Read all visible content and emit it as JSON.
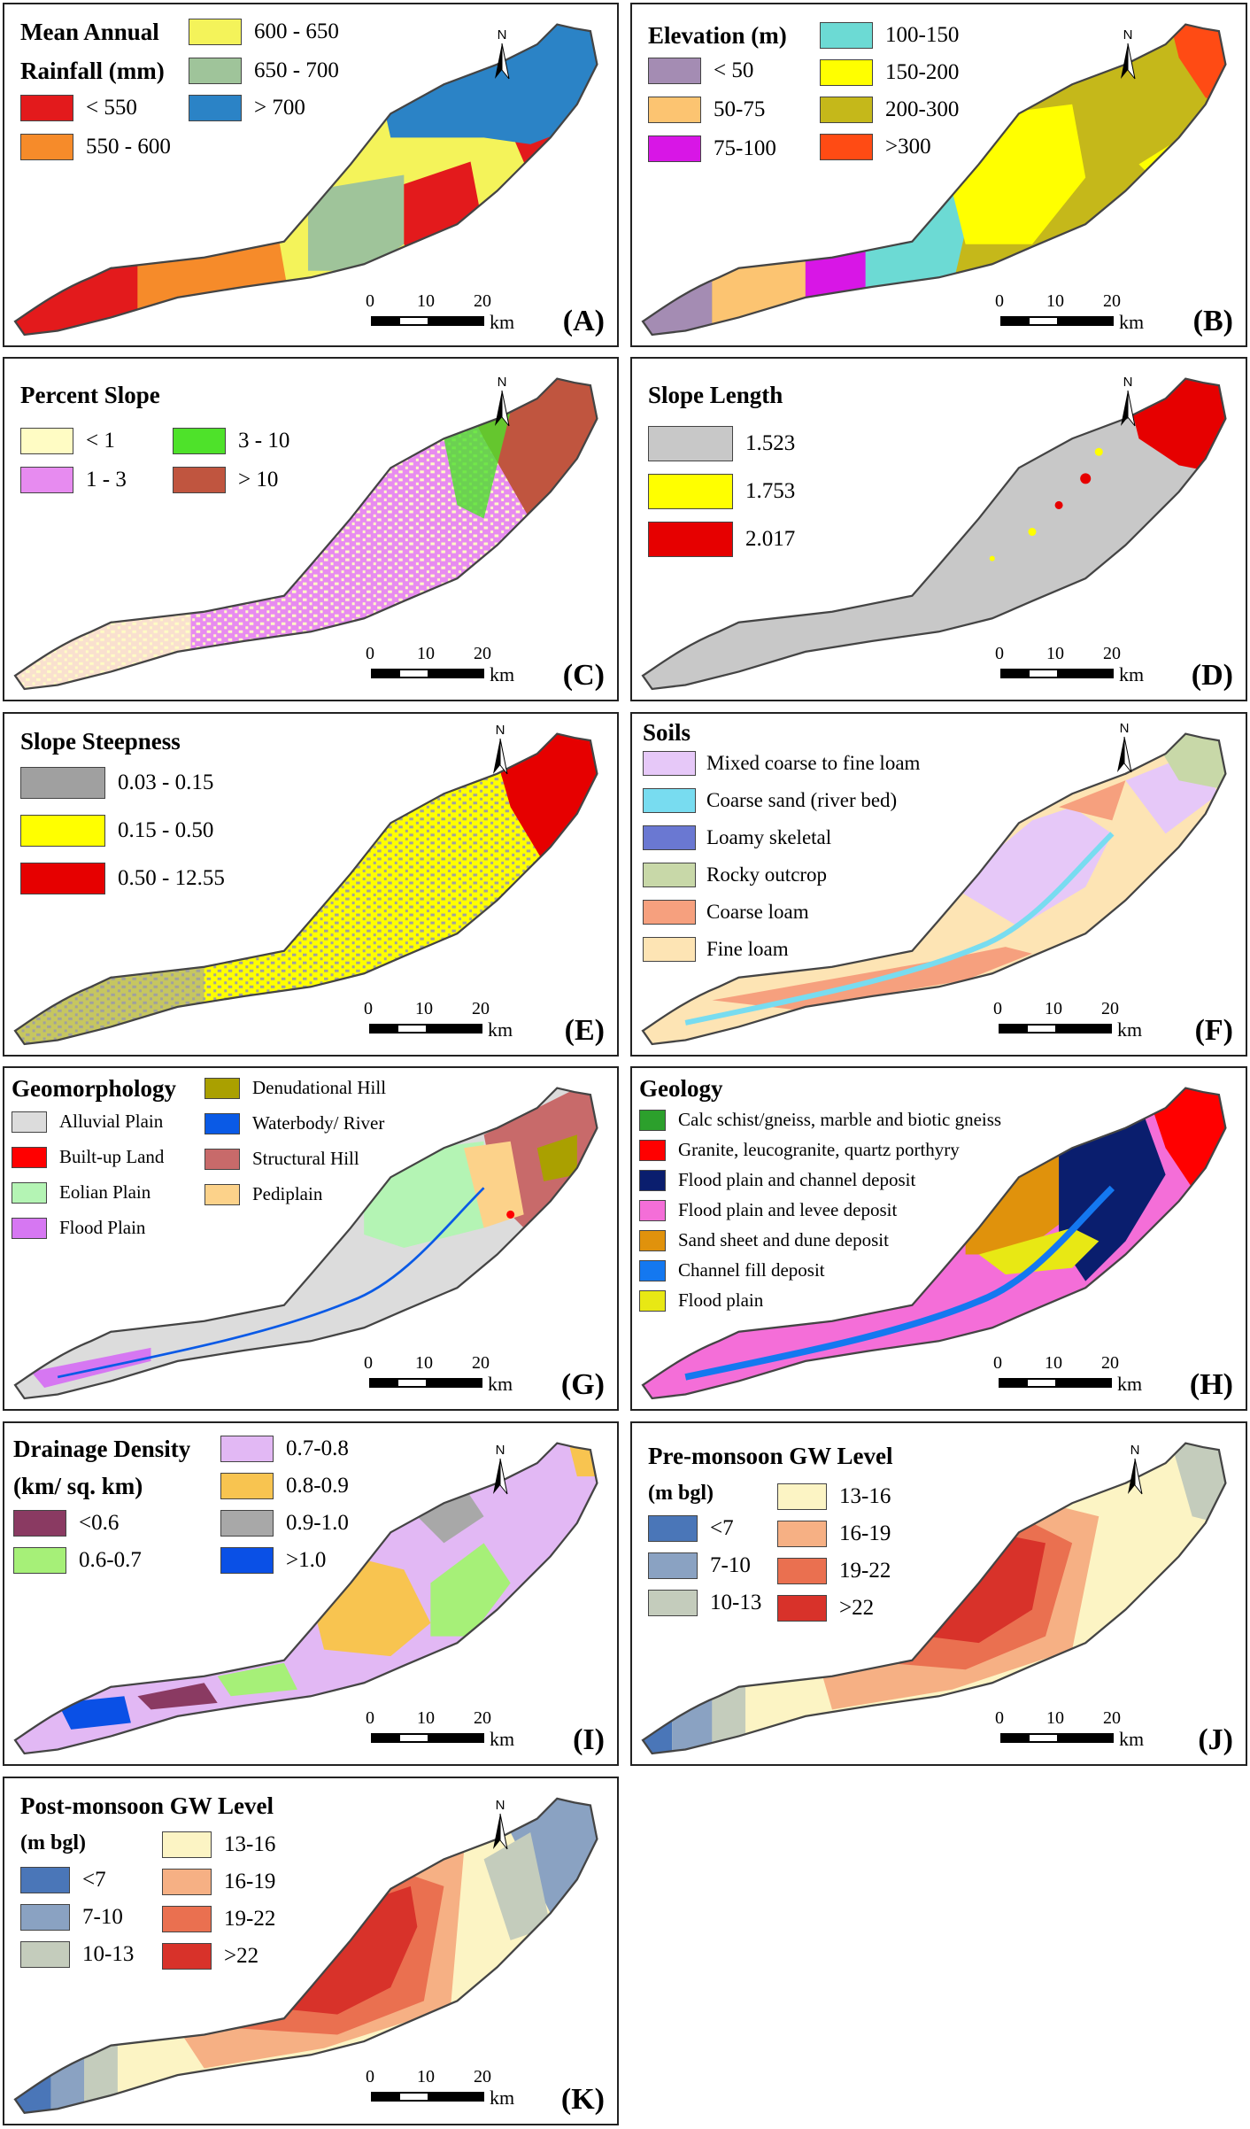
{
  "panels": [
    {
      "id": "A",
      "label": "(A)",
      "title_lines": [
        "Mean Annual",
        "Rainfall (mm)"
      ],
      "legend": [
        {
          "label": "< 550",
          "color": "#e31a1c"
        },
        {
          "label": "550 - 600",
          "color": "#f68b2a"
        },
        {
          "label": "600 - 650",
          "color": "#f4f35a"
        },
        {
          "label": "650 - 700",
          "color": "#9fc49a"
        },
        {
          "label": "> 700",
          "color": "#2b83c6"
        }
      ]
    },
    {
      "id": "B",
      "label": "(B)",
      "title_lines": [
        "Elevation (m)"
      ],
      "legend": [
        {
          "label": "< 50",
          "color": "#a48cb3"
        },
        {
          "label": "50-75",
          "color": "#fcc471"
        },
        {
          "label": "75-100",
          "color": "#d816e6"
        },
        {
          "label": "100-150",
          "color": "#6cdad4"
        },
        {
          "label": "150-200",
          "color": "#ffff00"
        },
        {
          "label": "200-300",
          "color": "#c5b81a"
        },
        {
          "label": ">300",
          "color": "#ff4b14"
        }
      ]
    },
    {
      "id": "C",
      "label": "(C)",
      "title_lines": [
        "Percent Slope"
      ],
      "legend": [
        {
          "label": "< 1",
          "color": "#fffcc4"
        },
        {
          "label": "1 - 3",
          "color": "#e78bf0"
        },
        {
          "label": "3 - 10",
          "color": "#4ee22a"
        },
        {
          "label": "> 10",
          "color": "#c0553f"
        }
      ]
    },
    {
      "id": "D",
      "label": "(D)",
      "title_lines": [
        "Slope Length"
      ],
      "legend": [
        {
          "label": "1.523",
          "color": "#c8c8c8"
        },
        {
          "label": "1.753",
          "color": "#ffff00"
        },
        {
          "label": "2.017",
          "color": "#e60000"
        }
      ]
    },
    {
      "id": "E",
      "label": "(E)",
      "title_lines": [
        "Slope Steepness"
      ],
      "legend": [
        {
          "label": "0.03 - 0.15",
          "color": "#a0a0a0"
        },
        {
          "label": "0.15 - 0.50",
          "color": "#ffff00"
        },
        {
          "label": "0.50 - 12.55",
          "color": "#e60000"
        }
      ]
    },
    {
      "id": "F",
      "label": "(F)",
      "title_lines": [
        "Soils"
      ],
      "legend": [
        {
          "label": "Mixed coarse to fine loam",
          "color": "#e6c8f8"
        },
        {
          "label": "Coarse sand (river bed)",
          "color": "#78dcf0"
        },
        {
          "label": "Loamy skeletal",
          "color": "#6a78d2"
        },
        {
          "label": "Rocky outcrop",
          "color": "#c8d8a8"
        },
        {
          "label": "Coarse loam",
          "color": "#f6a07e"
        },
        {
          "label": "Fine loam",
          "color": "#fde4b4"
        }
      ]
    },
    {
      "id": "G",
      "label": "(G)",
      "title_lines": [
        "Geomorphology"
      ],
      "legend": [
        {
          "label": "Alluvial Plain",
          "color": "#dcdcdc"
        },
        {
          "label": "Built-up Land",
          "color": "#ff0000"
        },
        {
          "label": "Eolian Plain",
          "color": "#b4f4b4"
        },
        {
          "label": "Flood Plain",
          "color": "#d677f2"
        },
        {
          "label": "Denudational Hill",
          "color": "#aaa000"
        },
        {
          "label": "Waterbody/ River",
          "color": "#0a5ae6"
        },
        {
          "label": "Structural Hill",
          "color": "#c86a6a"
        },
        {
          "label": "Pediplain",
          "color": "#fcd28a"
        }
      ]
    },
    {
      "id": "H",
      "label": "(H)",
      "title_lines": [
        "Geology"
      ],
      "legend": [
        {
          "label": "Calc schist/gneiss, marble and biotic gneiss",
          "color": "#2ca02c"
        },
        {
          "label": "Granite, leucogranite, quartz porthyry",
          "color": "#ff0000"
        },
        {
          "label": "Flood plain and channel deposit",
          "color": "#0a1e6e"
        },
        {
          "label": "Flood plain and levee deposit",
          "color": "#f46ed8"
        },
        {
          "label": "Sand sheet and dune deposit",
          "color": "#e0920c"
        },
        {
          "label": "Channel fill deposit",
          "color": "#1478f0"
        },
        {
          "label": "Flood plain",
          "color": "#e8e814"
        }
      ]
    },
    {
      "id": "I",
      "label": "(I)",
      "title_lines": [
        "Drainage Density",
        "(km/ sq. km)"
      ],
      "legend": [
        {
          "label": "<0.6",
          "color": "#8a3a62"
        },
        {
          "label": "0.6-0.7",
          "color": "#a6f078"
        },
        {
          "label": "0.7-0.8",
          "color": "#e2b8f4"
        },
        {
          "label": "0.8-0.9",
          "color": "#f8c450"
        },
        {
          "label": "0.9-1.0",
          "color": "#a8a8a8"
        },
        {
          "label": ">1.0",
          "color": "#0a50e6"
        }
      ]
    },
    {
      "id": "J",
      "label": "(J)",
      "title_lines": [
        "Pre-monsoon GW Level",
        "(m bgl)"
      ],
      "legend": [
        {
          "label": "<7",
          "color": "#4a76b8"
        },
        {
          "label": "7-10",
          "color": "#8aa2c2"
        },
        {
          "label": "10-13",
          "color": "#c4ccbc"
        },
        {
          "label": "13-16",
          "color": "#fcf4c4"
        },
        {
          "label": "16-19",
          "color": "#f6b084"
        },
        {
          "label": "19-22",
          "color": "#ea7050"
        },
        {
          "label": ">22",
          "color": "#d8322a"
        }
      ]
    },
    {
      "id": "K",
      "label": "(K)",
      "title_lines": [
        "Post-monsoon GW Level",
        "(m bgl)"
      ],
      "legend": [
        {
          "label": "<7",
          "color": "#4a76b8"
        },
        {
          "label": "7-10",
          "color": "#8aa2c2"
        },
        {
          "label": "10-13",
          "color": "#c4ccbc"
        },
        {
          "label": "13-16",
          "color": "#fcf4c4"
        },
        {
          "label": "16-19",
          "color": "#f6b084"
        },
        {
          "label": "19-22",
          "color": "#ea7050"
        },
        {
          "label": ">22",
          "color": "#d8322a"
        }
      ]
    }
  ],
  "scale": {
    "ticks": [
      "0",
      "10",
      "20"
    ],
    "unit": "km"
  },
  "north": "N",
  "icons": {
    "north": "north-arrow-icon"
  }
}
